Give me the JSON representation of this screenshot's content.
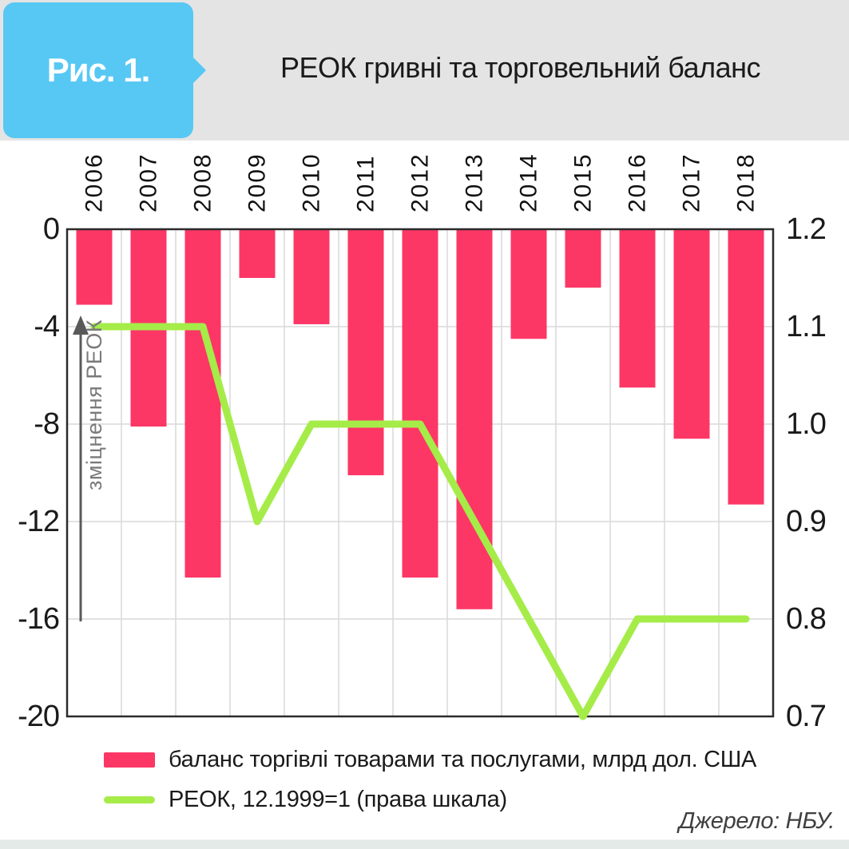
{
  "header": {
    "figure_label": "Рис. 1.",
    "title": "РЕОК гривні та торговельний баланс"
  },
  "annotation": {
    "label": "зміцнення РЕОК"
  },
  "legend": {
    "bar_label": "баланс торгівлі товарами та послугами, млрд дол. США",
    "line_label": "РЕОК, 12.1999=1 (права шкала)"
  },
  "footer": {
    "source": "Джерело: НБУ."
  },
  "colors": {
    "bar": "#fc3766",
    "line": "#a5ec49",
    "badge": "#57c8f4",
    "header_bg": "#e4e4e4",
    "grid": "#d9d9d9",
    "frame": "#2b2b2b",
    "tick_text": "#1a1a1a",
    "year_text": "#111111",
    "arrow": "#595959",
    "annotation_text": "#7a7a7a"
  },
  "chart_data": {
    "type": "bar",
    "categories": [
      "2006",
      "2007",
      "2008",
      "2009",
      "2010",
      "2011",
      "2012",
      "2013",
      "2014",
      "2015",
      "2016",
      "2017",
      "2018"
    ],
    "series": [
      {
        "name": "баланс торгівлі товарами та послугами, млрд дол. США",
        "type": "bar",
        "axis": "left",
        "values": [
          -3.1,
          -8.1,
          -14.3,
          -2.0,
          -3.9,
          -10.1,
          -14.3,
          -15.6,
          -4.5,
          -2.4,
          -6.5,
          -8.6,
          -11.3
        ]
      },
      {
        "name": "РЕОК, 12.1999=1 (права шкала)",
        "type": "line",
        "axis": "right",
        "values": [
          1.1,
          1.1,
          1.1,
          0.9,
          1.0,
          1.0,
          1.0,
          0.9,
          0.8,
          0.7,
          0.8,
          0.8,
          0.8
        ]
      }
    ],
    "left_axis": {
      "label": "",
      "min": -20,
      "max": 0,
      "tick_labels": [
        "0",
        "-4",
        "-8",
        "-12",
        "-16",
        "-20"
      ]
    },
    "right_axis": {
      "label": "",
      "min": 0.7,
      "max": 1.2,
      "tick_labels": [
        "1.2",
        "1.1",
        "1.0",
        "0.9",
        "0.8",
        "0.7"
      ]
    },
    "grid": true,
    "legend_position": "bottom",
    "annotation": {
      "text": "зміцнення РЕОК",
      "arrow_direction": "up"
    }
  }
}
